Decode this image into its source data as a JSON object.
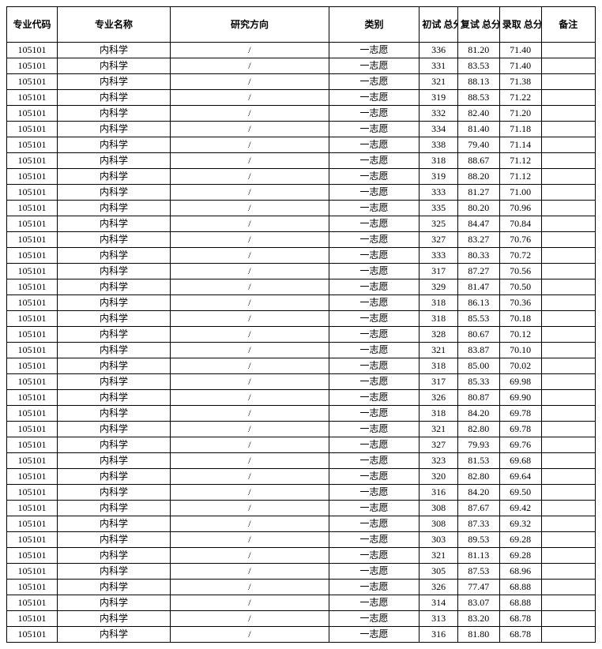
{
  "table": {
    "columns": [
      {
        "key": "code",
        "label": "专业代码"
      },
      {
        "key": "name",
        "label": "专业名称"
      },
      {
        "key": "dir",
        "label": "研究方向"
      },
      {
        "key": "cat",
        "label": "类别"
      },
      {
        "key": "s1",
        "label": "初试\n总分"
      },
      {
        "key": "s2",
        "label": "复试\n总分"
      },
      {
        "key": "s3",
        "label": "录取\n总分"
      },
      {
        "key": "note",
        "label": "备注"
      }
    ],
    "rows": [
      {
        "code": "105101",
        "name": "内科学",
        "dir": "/",
        "cat": "一志愿",
        "s1": "336",
        "s2": "81.20",
        "s3": "71.40",
        "note": ""
      },
      {
        "code": "105101",
        "name": "内科学",
        "dir": "/",
        "cat": "一志愿",
        "s1": "331",
        "s2": "83.53",
        "s3": "71.40",
        "note": ""
      },
      {
        "code": "105101",
        "name": "内科学",
        "dir": "/",
        "cat": "一志愿",
        "s1": "321",
        "s2": "88.13",
        "s3": "71.38",
        "note": ""
      },
      {
        "code": "105101",
        "name": "内科学",
        "dir": "/",
        "cat": "一志愿",
        "s1": "319",
        "s2": "88.53",
        "s3": "71.22",
        "note": ""
      },
      {
        "code": "105101",
        "name": "内科学",
        "dir": "/",
        "cat": "一志愿",
        "s1": "332",
        "s2": "82.40",
        "s3": "71.20",
        "note": ""
      },
      {
        "code": "105101",
        "name": "内科学",
        "dir": "/",
        "cat": "一志愿",
        "s1": "334",
        "s2": "81.40",
        "s3": "71.18",
        "note": ""
      },
      {
        "code": "105101",
        "name": "内科学",
        "dir": "/",
        "cat": "一志愿",
        "s1": "338",
        "s2": "79.40",
        "s3": "71.14",
        "note": ""
      },
      {
        "code": "105101",
        "name": "内科学",
        "dir": "/",
        "cat": "一志愿",
        "s1": "318",
        "s2": "88.67",
        "s3": "71.12",
        "note": ""
      },
      {
        "code": "105101",
        "name": "内科学",
        "dir": "/",
        "cat": "一志愿",
        "s1": "319",
        "s2": "88.20",
        "s3": "71.12",
        "note": ""
      },
      {
        "code": "105101",
        "name": "内科学",
        "dir": "/",
        "cat": "一志愿",
        "s1": "333",
        "s2": "81.27",
        "s3": "71.00",
        "note": ""
      },
      {
        "code": "105101",
        "name": "内科学",
        "dir": "/",
        "cat": "一志愿",
        "s1": "335",
        "s2": "80.20",
        "s3": "70.96",
        "note": ""
      },
      {
        "code": "105101",
        "name": "内科学",
        "dir": "/",
        "cat": "一志愿",
        "s1": "325",
        "s2": "84.47",
        "s3": "70.84",
        "note": ""
      },
      {
        "code": "105101",
        "name": "内科学",
        "dir": "/",
        "cat": "一志愿",
        "s1": "327",
        "s2": "83.27",
        "s3": "70.76",
        "note": ""
      },
      {
        "code": "105101",
        "name": "内科学",
        "dir": "/",
        "cat": "一志愿",
        "s1": "333",
        "s2": "80.33",
        "s3": "70.72",
        "note": ""
      },
      {
        "code": "105101",
        "name": "内科学",
        "dir": "/",
        "cat": "一志愿",
        "s1": "317",
        "s2": "87.27",
        "s3": "70.56",
        "note": ""
      },
      {
        "code": "105101",
        "name": "内科学",
        "dir": "/",
        "cat": "一志愿",
        "s1": "329",
        "s2": "81.47",
        "s3": "70.50",
        "note": ""
      },
      {
        "code": "105101",
        "name": "内科学",
        "dir": "/",
        "cat": "一志愿",
        "s1": "318",
        "s2": "86.13",
        "s3": "70.36",
        "note": ""
      },
      {
        "code": "105101",
        "name": "内科学",
        "dir": "/",
        "cat": "一志愿",
        "s1": "318",
        "s2": "85.53",
        "s3": "70.18",
        "note": ""
      },
      {
        "code": "105101",
        "name": "内科学",
        "dir": "/",
        "cat": "一志愿",
        "s1": "328",
        "s2": "80.67",
        "s3": "70.12",
        "note": ""
      },
      {
        "code": "105101",
        "name": "内科学",
        "dir": "/",
        "cat": "一志愿",
        "s1": "321",
        "s2": "83.87",
        "s3": "70.10",
        "note": ""
      },
      {
        "code": "105101",
        "name": "内科学",
        "dir": "/",
        "cat": "一志愿",
        "s1": "318",
        "s2": "85.00",
        "s3": "70.02",
        "note": ""
      },
      {
        "code": "105101",
        "name": "内科学",
        "dir": "/",
        "cat": "一志愿",
        "s1": "317",
        "s2": "85.33",
        "s3": "69.98",
        "note": ""
      },
      {
        "code": "105101",
        "name": "内科学",
        "dir": "/",
        "cat": "一志愿",
        "s1": "326",
        "s2": "80.87",
        "s3": "69.90",
        "note": ""
      },
      {
        "code": "105101",
        "name": "内科学",
        "dir": "/",
        "cat": "一志愿",
        "s1": "318",
        "s2": "84.20",
        "s3": "69.78",
        "note": ""
      },
      {
        "code": "105101",
        "name": "内科学",
        "dir": "/",
        "cat": "一志愿",
        "s1": "321",
        "s2": "82.80",
        "s3": "69.78",
        "note": ""
      },
      {
        "code": "105101",
        "name": "内科学",
        "dir": "/",
        "cat": "一志愿",
        "s1": "327",
        "s2": "79.93",
        "s3": "69.76",
        "note": ""
      },
      {
        "code": "105101",
        "name": "内科学",
        "dir": "/",
        "cat": "一志愿",
        "s1": "323",
        "s2": "81.53",
        "s3": "69.68",
        "note": ""
      },
      {
        "code": "105101",
        "name": "内科学",
        "dir": "/",
        "cat": "一志愿",
        "s1": "320",
        "s2": "82.80",
        "s3": "69.64",
        "note": ""
      },
      {
        "code": "105101",
        "name": "内科学",
        "dir": "/",
        "cat": "一志愿",
        "s1": "316",
        "s2": "84.20",
        "s3": "69.50",
        "note": ""
      },
      {
        "code": "105101",
        "name": "内科学",
        "dir": "/",
        "cat": "一志愿",
        "s1": "308",
        "s2": "87.67",
        "s3": "69.42",
        "note": ""
      },
      {
        "code": "105101",
        "name": "内科学",
        "dir": "/",
        "cat": "一志愿",
        "s1": "308",
        "s2": "87.33",
        "s3": "69.32",
        "note": ""
      },
      {
        "code": "105101",
        "name": "内科学",
        "dir": "/",
        "cat": "一志愿",
        "s1": "303",
        "s2": "89.53",
        "s3": "69.28",
        "note": ""
      },
      {
        "code": "105101",
        "name": "内科学",
        "dir": "/",
        "cat": "一志愿",
        "s1": "321",
        "s2": "81.13",
        "s3": "69.28",
        "note": ""
      },
      {
        "code": "105101",
        "name": "内科学",
        "dir": "/",
        "cat": "一志愿",
        "s1": "305",
        "s2": "87.53",
        "s3": "68.96",
        "note": ""
      },
      {
        "code": "105101",
        "name": "内科学",
        "dir": "/",
        "cat": "一志愿",
        "s1": "326",
        "s2": "77.47",
        "s3": "68.88",
        "note": ""
      },
      {
        "code": "105101",
        "name": "内科学",
        "dir": "/",
        "cat": "一志愿",
        "s1": "314",
        "s2": "83.07",
        "s3": "68.88",
        "note": ""
      },
      {
        "code": "105101",
        "name": "内科学",
        "dir": "/",
        "cat": "一志愿",
        "s1": "313",
        "s2": "83.20",
        "s3": "68.78",
        "note": ""
      },
      {
        "code": "105101",
        "name": "内科学",
        "dir": "/",
        "cat": "一志愿",
        "s1": "316",
        "s2": "81.80",
        "s3": "68.78",
        "note": ""
      }
    ]
  }
}
